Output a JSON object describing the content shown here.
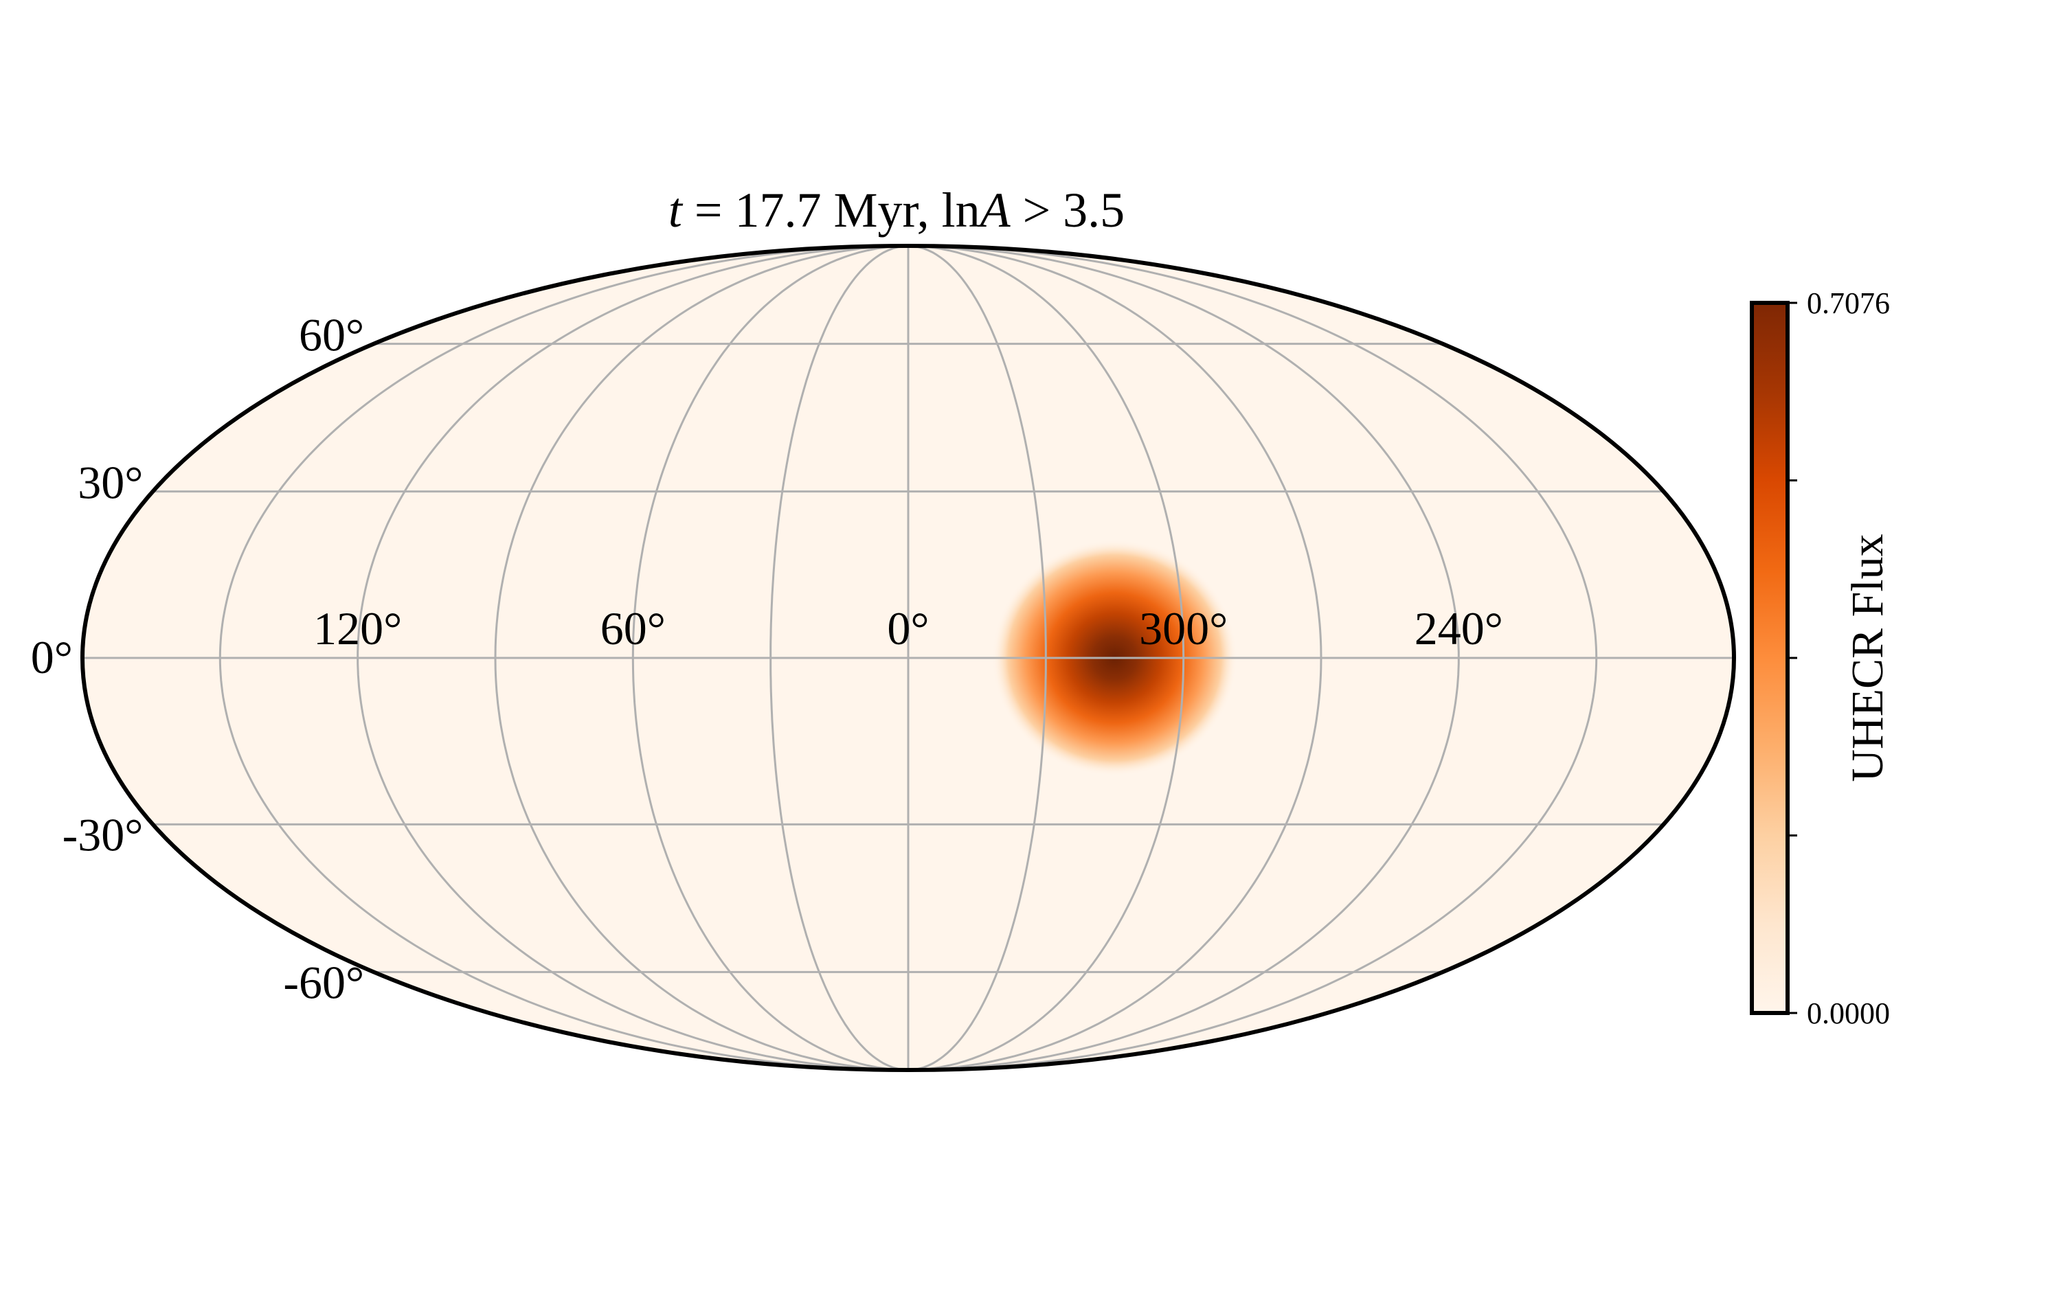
{
  "chart_data": {
    "type": "heatmap",
    "projection": "mollweide",
    "title": {
      "italic_t": "t",
      "equals_part": " = 17.7 Myr,  ln",
      "italic_A": "A",
      "tail": " > 3.5"
    },
    "longitude_ticks": [
      {
        "value": 120,
        "label": "120°"
      },
      {
        "value": 60,
        "label": "60°"
      },
      {
        "value": 0,
        "label": "0°"
      },
      {
        "value": -60,
        "label": "300°"
      },
      {
        "value": -120,
        "label": "240°"
      }
    ],
    "latitude_ticks": [
      {
        "value": 60,
        "label": "60°"
      },
      {
        "value": 30,
        "label": "30°"
      },
      {
        "value": 0,
        "label": "0°"
      },
      {
        "value": -30,
        "label": "-30°"
      },
      {
        "value": -60,
        "label": "-60°"
      }
    ],
    "grid": true,
    "longitude_range": [
      -180,
      180
    ],
    "latitude_range": [
      -90,
      90
    ],
    "hotspot": {
      "lon": -45,
      "lat": 0,
      "peak": 0.7076,
      "sigma_lon_deg": 11,
      "sigma_lat_deg": 12
    },
    "colorbar": {
      "label": "UHECR Flux",
      "min": 0.0,
      "max": 0.7076,
      "min_label": "0.0000",
      "max_label": "0.7076",
      "minor_ticks": 5,
      "colormap": [
        "#fff5eb",
        "#fee6ce",
        "#fdd0a2",
        "#fdae6b",
        "#fd8d3c",
        "#f16913",
        "#d94801",
        "#a63603",
        "#7f2704"
      ]
    },
    "background_color": "#fff5eb"
  }
}
